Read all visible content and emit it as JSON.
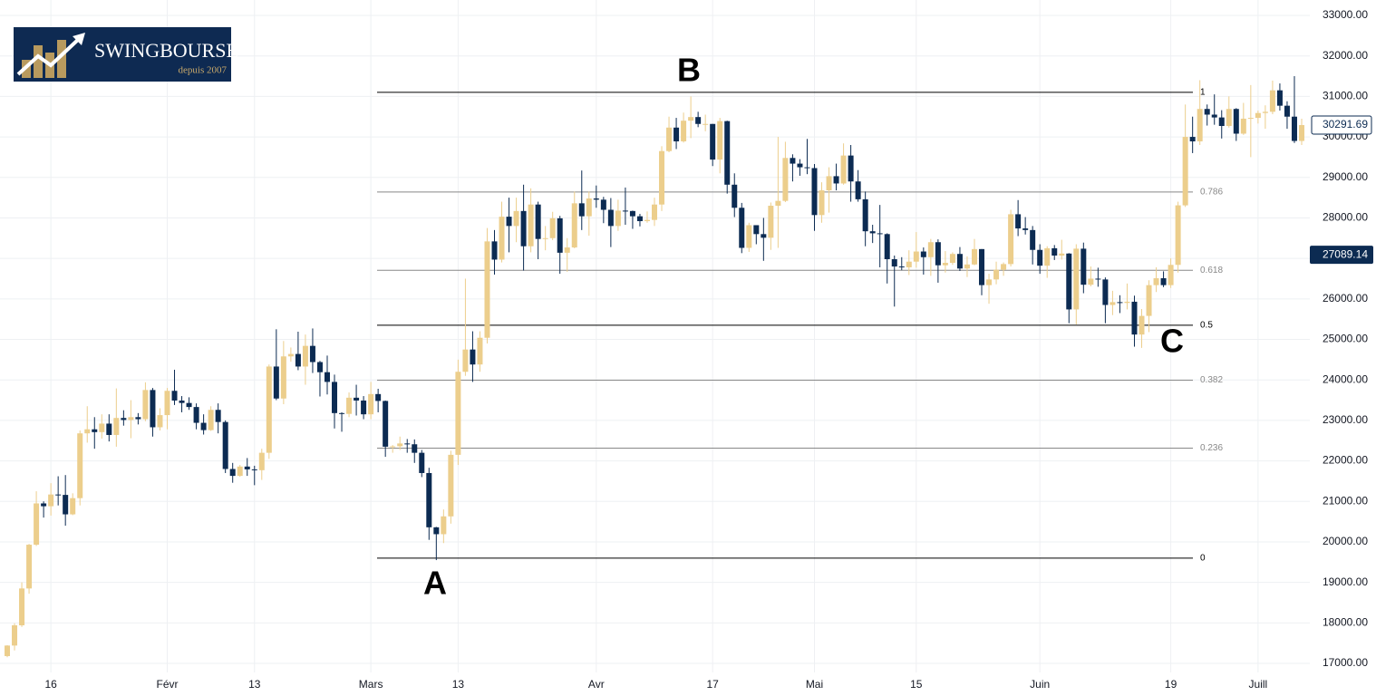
{
  "logo": {
    "name": "SWINGBOURSE",
    "tagline": "depuis 2007"
  },
  "chart_data": {
    "type": "candlestick",
    "up_color": "#ecce8c",
    "down_color": "#0c2b52",
    "grid": true,
    "ylim": [
      17000,
      33300
    ],
    "yticks": [
      {
        "value": 17000,
        "label": "17000.00"
      },
      {
        "value": 18000,
        "label": "18000.00"
      },
      {
        "value": 19000,
        "label": "19000.00"
      },
      {
        "value": 20000,
        "label": "20000.00"
      },
      {
        "value": 21000,
        "label": "21000.00"
      },
      {
        "value": 22000,
        "label": "22000.00"
      },
      {
        "value": 23000,
        "label": "23000.00"
      },
      {
        "value": 24000,
        "label": "24000.00"
      },
      {
        "value": 25000,
        "label": "25000.00"
      },
      {
        "value": 26000,
        "label": "26000.00"
      },
      {
        "value": 27000,
        "label": "27000.00"
      },
      {
        "value": 28000,
        "label": "28000.00"
      },
      {
        "value": 29000,
        "label": "29000.00"
      },
      {
        "value": 30000,
        "label": "30000.00"
      },
      {
        "value": 31000,
        "label": "31000.00"
      },
      {
        "value": 32000,
        "label": "32000.00"
      },
      {
        "value": 33000,
        "label": "33000.00"
      }
    ],
    "categories": [
      null,
      null,
      null,
      null,
      null,
      null,
      "16",
      null,
      null,
      null,
      null,
      null,
      null,
      null,
      null,
      null,
      null,
      null,
      null,
      null,
      null,
      null,
      "Févr",
      null,
      null,
      null,
      null,
      null,
      null,
      null,
      null,
      null,
      null,
      null,
      "13",
      null,
      null,
      null,
      null,
      null,
      null,
      null,
      null,
      null,
      null,
      null,
      null,
      null,
      null,
      null,
      "Mars",
      null,
      null,
      null,
      null,
      null,
      null,
      null,
      null,
      null,
      null,
      null,
      "13",
      null,
      null,
      null,
      null,
      null,
      null,
      null,
      null,
      null,
      null,
      null,
      null,
      null,
      null,
      null,
      null,
      null,
      null,
      "Avr",
      null,
      null,
      null,
      null,
      null,
      null,
      null,
      null,
      null,
      null,
      null,
      null,
      null,
      null,
      null,
      "17",
      null,
      null,
      null,
      null,
      null,
      null,
      null,
      null,
      null,
      null,
      null,
      null,
      null,
      "Mai",
      null,
      null,
      null,
      null,
      null,
      null,
      null,
      null,
      null,
      null,
      null,
      null,
      null,
      "15",
      null,
      null,
      null,
      null,
      null,
      null,
      null,
      null,
      null,
      null,
      null,
      null,
      null,
      null,
      null,
      null,
      "Juin",
      null,
      null,
      null,
      null,
      null,
      null,
      null,
      null,
      null,
      null,
      null,
      null,
      null,
      null,
      null,
      null,
      null,
      "19",
      null,
      null,
      null,
      null,
      null,
      null,
      null,
      null,
      null,
      null,
      null,
      "Juill",
      null,
      null,
      null,
      null,
      null,
      null
    ],
    "ohlc": [
      [
        17180,
        17450,
        17150,
        17440
      ],
      [
        17440,
        17990,
        17320,
        17940
      ],
      [
        17940,
        19000,
        17900,
        18850
      ],
      [
        18850,
        19950,
        18720,
        19930
      ],
      [
        19930,
        21250,
        19900,
        20950
      ],
      [
        20950,
        21000,
        20600,
        20880
      ],
      [
        20880,
        21450,
        20650,
        21170
      ],
      [
        21170,
        21620,
        20900,
        21160
      ],
      [
        21160,
        21650,
        20400,
        20680
      ],
      [
        20680,
        21200,
        20660,
        21080
      ],
      [
        21080,
        22750,
        20900,
        22680
      ],
      [
        22680,
        23350,
        22450,
        22780
      ],
      [
        22780,
        23080,
        22300,
        22710
      ],
      [
        22710,
        23150,
        22550,
        22920
      ],
      [
        22920,
        23150,
        22480,
        22640
      ],
      [
        22640,
        23790,
        22350,
        23060
      ],
      [
        23060,
        23250,
        22870,
        23010
      ],
      [
        23010,
        23500,
        22560,
        23080
      ],
      [
        23080,
        23180,
        22900,
        23030
      ],
      [
        23030,
        23940,
        22980,
        23750
      ],
      [
        23750,
        23800,
        22600,
        22830
      ],
      [
        22830,
        23300,
        22750,
        23130
      ],
      [
        23130,
        23800,
        22780,
        23730
      ],
      [
        23730,
        24250,
        23380,
        23490
      ],
      [
        23490,
        23600,
        23200,
        23430
      ],
      [
        23430,
        23570,
        23260,
        23330
      ],
      [
        23330,
        23420,
        22780,
        22940
      ],
      [
        22940,
        23150,
        22650,
        22760
      ],
      [
        22760,
        23350,
        22740,
        23260
      ],
      [
        23260,
        23420,
        22680,
        22960
      ],
      [
        22960,
        23000,
        21700,
        21800
      ],
      [
        21800,
        21950,
        21460,
        21630
      ],
      [
        21630,
        21900,
        21610,
        21860
      ],
      [
        21860,
        22070,
        21630,
        21790
      ],
      [
        21790,
        21880,
        21400,
        21770
      ],
      [
        21770,
        22300,
        21530,
        22200
      ],
      [
        22200,
        24380,
        22050,
        24330
      ],
      [
        24330,
        25250,
        23500,
        23540
      ],
      [
        23540,
        24960,
        23400,
        24580
      ],
      [
        24580,
        24800,
        24450,
        24640
      ],
      [
        24640,
        25190,
        24240,
        24330
      ],
      [
        24330,
        25120,
        23880,
        24840
      ],
      [
        24840,
        25270,
        24170,
        24440
      ],
      [
        24440,
        24470,
        23590,
        24190
      ],
      [
        24190,
        24600,
        23640,
        23950
      ],
      [
        23950,
        24130,
        22800,
        23180
      ],
      [
        23180,
        23200,
        22720,
        23160
      ],
      [
        23160,
        23690,
        23080,
        23560
      ],
      [
        23560,
        23880,
        23120,
        23490
      ],
      [
        23490,
        23600,
        23030,
        23150
      ],
      [
        23150,
        23950,
        23030,
        23650
      ],
      [
        23650,
        23780,
        23200,
        23480
      ],
      [
        23480,
        23490,
        22100,
        22350
      ],
      [
        22350,
        22390,
        22200,
        22360
      ],
      [
        22360,
        22600,
        22270,
        22430
      ],
      [
        22430,
        22540,
        22200,
        22410
      ],
      [
        22410,
        22530,
        21950,
        22200
      ],
      [
        22200,
        22270,
        21600,
        21700
      ],
      [
        21700,
        21830,
        20050,
        20360
      ],
      [
        20360,
        20370,
        19550,
        20190
      ],
      [
        20190,
        20800,
        19970,
        20630
      ],
      [
        20630,
        22250,
        20450,
        22150
      ],
      [
        22150,
        24500,
        21900,
        24200
      ],
      [
        24200,
        26500,
        24100,
        24750
      ],
      [
        24750,
        25200,
        23950,
        24380
      ],
      [
        24380,
        25200,
        24200,
        25040
      ],
      [
        25040,
        27750,
        24900,
        27420
      ],
      [
        27420,
        27700,
        26600,
        26970
      ],
      [
        26970,
        28400,
        26900,
        28030
      ],
      [
        28030,
        28500,
        27150,
        27800
      ],
      [
        27800,
        28500,
        27400,
        28170
      ],
      [
        28170,
        28820,
        26700,
        27300
      ],
      [
        27300,
        28730,
        27150,
        28330
      ],
      [
        28330,
        28400,
        26980,
        27480
      ],
      [
        27480,
        27800,
        27200,
        27500
      ],
      [
        27500,
        28150,
        27450,
        27990
      ],
      [
        27990,
        28050,
        26620,
        27140
      ],
      [
        27140,
        27500,
        26670,
        27270
      ],
      [
        27270,
        28650,
        27250,
        28360
      ],
      [
        28360,
        29170,
        27700,
        28040
      ],
      [
        28040,
        28650,
        27560,
        28480
      ],
      [
        28480,
        28800,
        28250,
        28450
      ],
      [
        28450,
        28520,
        27870,
        28200
      ],
      [
        28200,
        28490,
        27280,
        27800
      ],
      [
        27800,
        28450,
        27680,
        28180
      ],
      [
        28180,
        28750,
        27830,
        28170
      ],
      [
        28170,
        28180,
        27730,
        28040
      ],
      [
        28040,
        28100,
        27790,
        27920
      ],
      [
        27920,
        28160,
        27880,
        27950
      ],
      [
        27950,
        28500,
        27800,
        28330
      ],
      [
        28330,
        29770,
        28170,
        29650
      ],
      [
        29650,
        30500,
        29620,
        30230
      ],
      [
        30230,
        30470,
        29700,
        29890
      ],
      [
        29890,
        30600,
        29860,
        30400
      ],
      [
        30400,
        31000,
        29970,
        30490
      ],
      [
        30490,
        30620,
        30240,
        30320
      ],
      [
        30320,
        30550,
        30140,
        30320
      ],
      [
        30320,
        30320,
        29280,
        29440
      ],
      [
        29440,
        30470,
        29100,
        30390
      ],
      [
        30390,
        30400,
        28600,
        28820
      ],
      [
        28820,
        29100,
        28020,
        28250
      ],
      [
        28250,
        28370,
        27130,
        27260
      ],
      [
        27260,
        27880,
        27160,
        27820
      ],
      [
        27820,
        27820,
        27350,
        27600
      ],
      [
        27600,
        28000,
        26940,
        27510
      ],
      [
        27510,
        28380,
        27210,
        28300
      ],
      [
        28300,
        30000,
        27260,
        28420
      ],
      [
        28420,
        29880,
        28390,
        29480
      ],
      [
        29480,
        29570,
        28900,
        29340
      ],
      [
        29340,
        29450,
        29040,
        29250
      ],
      [
        29250,
        29950,
        29080,
        29230
      ],
      [
        29230,
        29330,
        27680,
        28070
      ],
      [
        28070,
        28880,
        27880,
        28680
      ],
      [
        28680,
        29250,
        28130,
        29030
      ],
      [
        29030,
        29340,
        28680,
        28850
      ],
      [
        28850,
        29840,
        28820,
        29540
      ],
      [
        29540,
        29800,
        28400,
        28900
      ],
      [
        28900,
        29180,
        28400,
        28460
      ],
      [
        28460,
        28650,
        27300,
        27670
      ],
      [
        27670,
        27830,
        27380,
        27620
      ],
      [
        27620,
        28320,
        26780,
        27600
      ],
      [
        27600,
        27620,
        26380,
        26980
      ],
      [
        26980,
        27070,
        25810,
        26800
      ],
      [
        26800,
        27030,
        26710,
        26780
      ],
      [
        26780,
        27200,
        26590,
        26920
      ],
      [
        26920,
        27650,
        26770,
        27170
      ],
      [
        27170,
        27270,
        26600,
        27030
      ],
      [
        27030,
        27480,
        26570,
        27400
      ],
      [
        27400,
        27470,
        26400,
        26830
      ],
      [
        26830,
        27180,
        26650,
        26890
      ],
      [
        26890,
        27150,
        26840,
        27110
      ],
      [
        27110,
        27280,
        26690,
        26750
      ],
      [
        26750,
        27050,
        26540,
        26850
      ],
      [
        26850,
        27480,
        26830,
        27230
      ],
      [
        27230,
        27230,
        26090,
        26340
      ],
      [
        26340,
        26620,
        25880,
        26480
      ],
      [
        26480,
        26920,
        26360,
        26720
      ],
      [
        26720,
        26900,
        26570,
        26860
      ],
      [
        26860,
        28200,
        26800,
        28090
      ],
      [
        28090,
        28440,
        27550,
        27740
      ],
      [
        27740,
        28020,
        27590,
        27700
      ],
      [
        27700,
        27800,
        26850,
        27210
      ],
      [
        27210,
        27350,
        26620,
        26820
      ],
      [
        26820,
        27300,
        26520,
        27250
      ],
      [
        27250,
        27330,
        26960,
        27070
      ],
      [
        27070,
        27460,
        26970,
        27120
      ],
      [
        27120,
        27130,
        25400,
        25740
      ],
      [
        25740,
        27350,
        25370,
        27240
      ],
      [
        27240,
        27390,
        26140,
        26350
      ],
      [
        26350,
        26800,
        26310,
        26500
      ],
      [
        26500,
        26770,
        26300,
        26480
      ],
      [
        26480,
        26530,
        25400,
        25850
      ],
      [
        25850,
        26200,
        25600,
        25920
      ],
      [
        25920,
        26090,
        25650,
        25900
      ],
      [
        25900,
        26380,
        25740,
        25930
      ],
      [
        25930,
        26080,
        24820,
        25120
      ],
      [
        25120,
        25750,
        24790,
        25580
      ],
      [
        25580,
        26460,
        25180,
        26340
      ],
      [
        26340,
        26780,
        26170,
        26510
      ],
      [
        26510,
        26680,
        26290,
        26340
      ],
      [
        26340,
        27000,
        26270,
        26840
      ],
      [
        26840,
        28400,
        26650,
        28310
      ],
      [
        28310,
        30800,
        28270,
        30000
      ],
      [
        30000,
        30500,
        29600,
        29890
      ],
      [
        29890,
        31400,
        29800,
        30690
      ],
      [
        30690,
        30800,
        30280,
        30550
      ],
      [
        30550,
        31050,
        30300,
        30480
      ],
      [
        30480,
        30660,
        29960,
        30270
      ],
      [
        30270,
        31000,
        30230,
        30690
      ],
      [
        30690,
        30710,
        29900,
        30080
      ],
      [
        30080,
        30840,
        30050,
        30450
      ],
      [
        30450,
        31280,
        29500,
        30470
      ],
      [
        30470,
        30650,
        30330,
        30590
      ],
      [
        30590,
        30780,
        30200,
        30620
      ],
      [
        30620,
        31390,
        30560,
        31150
      ],
      [
        31150,
        31320,
        30650,
        30770
      ],
      [
        30770,
        30880,
        30200,
        30500
      ],
      [
        30500,
        31500,
        29850,
        29900
      ],
      [
        29900,
        30450,
        29800,
        30291.69
      ]
    ],
    "fib": {
      "low": 19600,
      "high": 31100,
      "levels": [
        0,
        0.236,
        0.382,
        0.5,
        0.618,
        0.786,
        1
      ]
    },
    "annotations": [
      "A",
      "B",
      "C"
    ],
    "last_price": 30291.69,
    "marked_price": 27089.14
  }
}
